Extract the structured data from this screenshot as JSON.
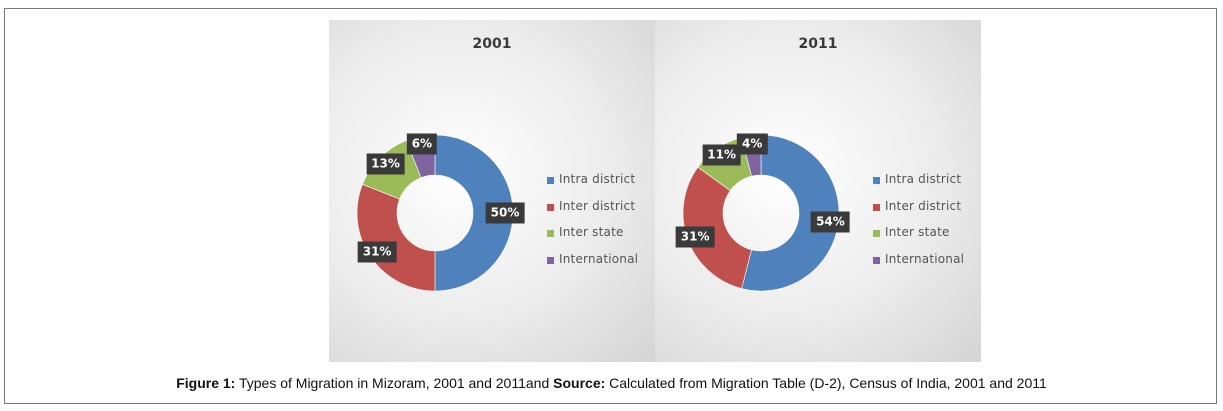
{
  "caption": {
    "label_bold": "Figure 1:",
    "text": " Types of Migration in Mizoram, 2001 and 2011and ",
    "source_bold": "Source:",
    "source_text": " Calculated from Migration Table (D-2), Census of India, 2001 and 2011"
  },
  "chart_data": [
    {
      "type": "pie",
      "title": "2001",
      "categories": [
        "Intra district",
        "Inter district",
        "Inter state",
        "International"
      ],
      "values": [
        50,
        31,
        13,
        6
      ],
      "data_labels": [
        "50%",
        "31%",
        "13%",
        "6%"
      ],
      "colors": [
        "#4f81bd",
        "#c0504d",
        "#9bbb59",
        "#8064a2"
      ],
      "legend": "right"
    },
    {
      "type": "pie",
      "title": "2011",
      "categories": [
        "Intra district",
        "Inter district",
        "Inter state",
        "International"
      ],
      "values": [
        54,
        31,
        11,
        4
      ],
      "data_labels": [
        "54%",
        "31%",
        "11%",
        "4%"
      ],
      "colors": [
        "#4f81bd",
        "#c0504d",
        "#9bbb59",
        "#8064a2"
      ],
      "legend": "right"
    }
  ]
}
